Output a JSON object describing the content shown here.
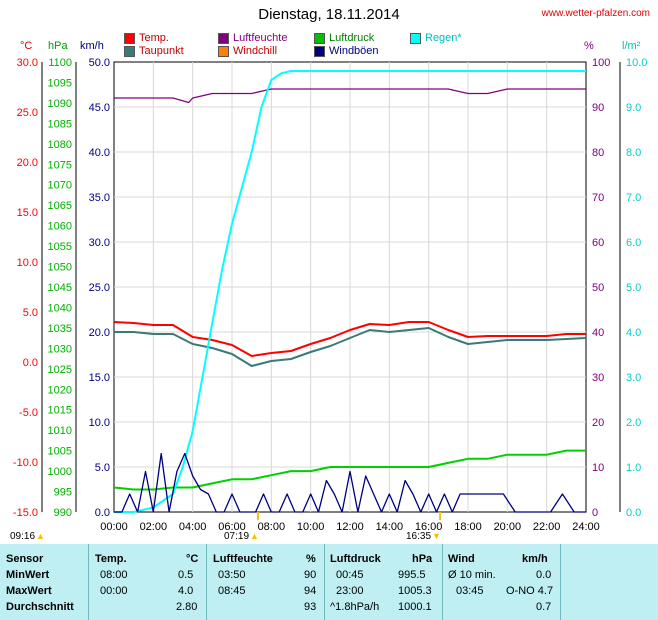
{
  "header": {
    "title": "Dienstag, 18.11.2014",
    "site": "www.wetter-pfalzen.com"
  },
  "legend": [
    {
      "label": "Temp.",
      "color": "#ff0000"
    },
    {
      "label": "Luftfeuchte",
      "color": "#800080"
    },
    {
      "label": "Luftdruck",
      "color": "#00c000"
    },
    {
      "label": "Regen*",
      "color": "#00ffff"
    },
    {
      "label": "Taupunkt",
      "color": "#3a7a78"
    },
    {
      "label": "Windchill",
      "color": "#ff8000"
    },
    {
      "label": "Windböen",
      "color": "#000080"
    }
  ],
  "units": {
    "temp": "°C",
    "pressure": "hPa",
    "wind": "km/h",
    "humidity": "%",
    "rain": "l/m²"
  },
  "sun": {
    "sunrise_day": "09:16",
    "sunrise": "07:19",
    "sunset": "16:35"
  },
  "chart_data": {
    "type": "line",
    "x_ticks": [
      "00:00",
      "02:00",
      "04:00",
      "06:00",
      "08:00",
      "10:00",
      "12:00",
      "14:00",
      "16:00",
      "18:00",
      "20:00",
      "22:00",
      "24:00"
    ],
    "axes": {
      "temp": {
        "unit": "°C",
        "ylim": [
          -15,
          30
        ],
        "ticks": [
          "30.0",
          "25.0",
          "20.0",
          "15.0",
          "10.0",
          "5.0",
          "0.0",
          "-5.0",
          "-10.0",
          "-15.0"
        ],
        "color": "#ff0000"
      },
      "pressure": {
        "unit": "hPa",
        "ylim": [
          990,
          1100
        ],
        "ticks": [
          "1100",
          "1095",
          "1090",
          "1085",
          "1080",
          "1075",
          "1070",
          "1065",
          "1060",
          "1055",
          "1050",
          "1045",
          "1040",
          "1035",
          "1030",
          "1025",
          "1020",
          "1015",
          "1010",
          "1005",
          "1000",
          "995",
          "990"
        ],
        "color": "#00b000"
      },
      "wind": {
        "unit": "km/h",
        "ylim": [
          0,
          50
        ],
        "ticks": [
          "50.0",
          "45.0",
          "40.0",
          "35.0",
          "30.0",
          "25.0",
          "20.0",
          "15.0",
          "10.0",
          "5.0",
          "0.0"
        ],
        "color": "#000080"
      },
      "humidity": {
        "unit": "%",
        "ylim": [
          0,
          100
        ],
        "ticks": [
          "100",
          "90",
          "80",
          "70",
          "60",
          "50",
          "40",
          "30",
          "20",
          "10",
          "0"
        ],
        "color": "#800080"
      },
      "rain": {
        "unit": "l/m²",
        "ylim": [
          0,
          10
        ],
        "ticks": [
          "10.0",
          "9.0",
          "8.0",
          "7.0",
          "6.0",
          "5.0",
          "4.0",
          "3.0",
          "2.0",
          "1.0",
          "0.0"
        ],
        "color": "#00d0d0"
      }
    },
    "series": [
      {
        "name": "Temp.",
        "axis": "temp",
        "color": "#ff0000",
        "x": [
          0,
          1,
          2,
          3,
          4,
          5,
          6,
          7,
          8,
          9,
          10,
          11,
          12,
          13,
          14,
          15,
          16,
          17,
          18,
          19,
          20,
          21,
          22,
          23,
          24
        ],
        "y": [
          4.0,
          3.9,
          3.7,
          3.7,
          2.5,
          2.2,
          1.7,
          0.6,
          0.9,
          1.1,
          1.8,
          2.4,
          3.2,
          3.8,
          3.7,
          4.0,
          4.0,
          3.2,
          2.5,
          2.6,
          2.6,
          2.6,
          2.6,
          2.8,
          2.8
        ]
      },
      {
        "name": "Taupunkt",
        "axis": "temp",
        "color": "#3a7a78",
        "x": [
          0,
          1,
          2,
          3,
          4,
          5,
          6,
          7,
          8,
          9,
          10,
          11,
          12,
          13,
          14,
          15,
          16,
          17,
          18,
          19,
          20,
          21,
          22,
          23,
          24
        ],
        "y": [
          3.0,
          3.0,
          2.8,
          2.8,
          1.8,
          1.4,
          0.8,
          -0.4,
          0.1,
          0.3,
          1.0,
          1.6,
          2.4,
          3.2,
          3.0,
          3.2,
          3.4,
          2.5,
          1.8,
          2.0,
          2.2,
          2.2,
          2.2,
          2.3,
          2.4
        ]
      },
      {
        "name": "Luftfeuchte",
        "axis": "humidity",
        "color": "#800080",
        "x": [
          0,
          1,
          2,
          3,
          3.8,
          4,
          5,
          6,
          7,
          8,
          9,
          10,
          11,
          12,
          13,
          14,
          15,
          16,
          17,
          18,
          19,
          20,
          21,
          22,
          23,
          24
        ],
        "y": [
          92,
          92,
          92,
          92,
          91,
          92,
          93,
          93,
          93,
          94,
          94,
          94,
          94,
          94,
          94,
          94,
          94,
          94,
          94,
          93,
          93,
          94,
          94,
          94,
          94,
          94
        ]
      },
      {
        "name": "Luftdruck",
        "axis": "pressure",
        "color": "#00d000",
        "x": [
          0,
          1,
          2,
          3,
          4,
          5,
          6,
          7,
          8,
          9,
          10,
          11,
          12,
          13,
          14,
          15,
          16,
          17,
          18,
          19,
          20,
          21,
          22,
          23,
          24
        ],
        "y": [
          996,
          995.5,
          995.5,
          996,
          996,
          997,
          998,
          998,
          999,
          1000,
          1000,
          1001,
          1001,
          1001,
          1001,
          1001,
          1001,
          1002,
          1003,
          1003,
          1004,
          1004,
          1004,
          1005,
          1005
        ]
      },
      {
        "name": "Regen*",
        "axis": "rain",
        "color": "#00ffff",
        "x": [
          0,
          1,
          2,
          3,
          3.5,
          4,
          4.5,
          5,
          5.5,
          6,
          6.5,
          7,
          7.5,
          8,
          8.5,
          9,
          10,
          12,
          14,
          16,
          18,
          20,
          22,
          24
        ],
        "y": [
          0,
          0,
          0.1,
          0.4,
          1.0,
          1.8,
          3.0,
          4.2,
          5.4,
          6.4,
          7.2,
          8.0,
          9.0,
          9.6,
          9.75,
          9.8,
          9.8,
          9.8,
          9.8,
          9.8,
          9.8,
          9.8,
          9.8,
          9.8
        ]
      },
      {
        "name": "Windböen",
        "axis": "wind",
        "color": "#000080",
        "x": [
          0,
          0.4,
          0.8,
          1.2,
          1.6,
          2.0,
          2.4,
          2.8,
          3.2,
          3.6,
          4.0,
          4.4,
          4.8,
          5.2,
          5.6,
          6.0,
          6.4,
          6.8,
          7.2,
          7.6,
          8.0,
          8.4,
          8.8,
          9.2,
          9.6,
          10.0,
          10.4,
          10.8,
          11.2,
          11.6,
          12.0,
          12.4,
          12.8,
          13.2,
          13.6,
          14.0,
          14.4,
          14.8,
          15.2,
          15.6,
          16.0,
          16.4,
          16.8,
          17.2,
          17.6,
          18.0,
          18.6,
          19.2,
          19.8,
          20.4,
          21.0,
          21.6,
          22.2,
          22.8,
          23.4,
          24.0
        ],
        "y": [
          0,
          0,
          2,
          0,
          4.5,
          0,
          6.5,
          0,
          4.5,
          6.5,
          4,
          2.5,
          2,
          0,
          0,
          2,
          0,
          0,
          0,
          2,
          0,
          0,
          2,
          0,
          0,
          2,
          0,
          3.5,
          2,
          0,
          4.5,
          0,
          4,
          2,
          0,
          2,
          0,
          3.5,
          2,
          0,
          2,
          0,
          2,
          0,
          2,
          2,
          2,
          2,
          2,
          0,
          0,
          0,
          0,
          2,
          0,
          0
        ]
      }
    ],
    "stats": {
      "headers": {
        "sensor": "Sensor",
        "temp": "Temp.",
        "temp_unit": "°C",
        "hum": "Luftfeuchte",
        "hum_unit": "%",
        "press": "Luftdruck",
        "press_unit": "hPa",
        "wind": "Wind",
        "wind_unit": "km/h"
      },
      "rows": [
        {
          "label": "MinWert",
          "temp_time": "08:00",
          "temp_val": "0.5",
          "hum_time": "03:50",
          "hum_val": "90",
          "press_time": "00:45",
          "press_val": "995.5",
          "wind_time": "Ø 10 min.",
          "wind_val": "0.0"
        },
        {
          "label": "MaxWert",
          "temp_time": "00:00",
          "temp_val": "4.0",
          "hum_time": "08:45",
          "hum_val": "94",
          "press_time": "23:00",
          "press_val": "1005.3",
          "wind_time": "03:45",
          "wind_val": "O-NO 4.7"
        },
        {
          "label": "Durchschnitt",
          "temp_time": "",
          "temp_val": "2.80",
          "hum_time": "",
          "hum_val": "93",
          "press_time": "^1.8hPa/h",
          "press_val": "1000.1",
          "wind_time": "",
          "wind_val": "0.7"
        }
      ]
    }
  }
}
